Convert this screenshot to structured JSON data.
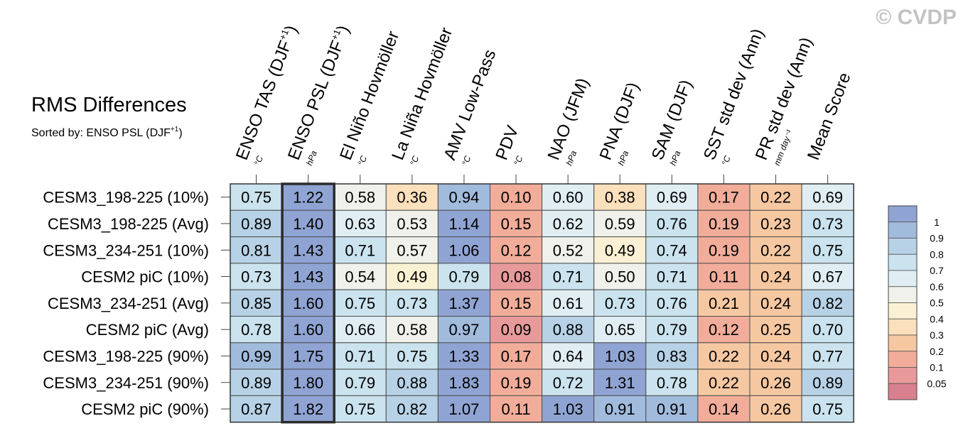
{
  "copyright": "© CVDP",
  "chart_data": {
    "type": "heatmap",
    "title": "RMS Differences",
    "subtitle_prefix": "Sorted by: ENSO PSL (DJF",
    "subtitle_sup": "+1",
    "subtitle_suffix": ")",
    "columns": [
      {
        "label": "ENSO TAS (DJF",
        "sup": "+1",
        "close": ")",
        "unit": "°C"
      },
      {
        "label": "ENSO PSL (DJF",
        "sup": "+1",
        "close": ")",
        "unit": "hPa"
      },
      {
        "label": "El Niño Hovmöller",
        "sup": "",
        "close": "",
        "unit": "°C"
      },
      {
        "label": "La Niña Hovmöller",
        "sup": "",
        "close": "",
        "unit": "°C"
      },
      {
        "label": "AMV Low-Pass",
        "sup": "",
        "close": "",
        "unit": "°C"
      },
      {
        "label": "PDV",
        "sup": "",
        "close": "",
        "unit": "°C"
      },
      {
        "label": "NAO (JFM)",
        "sup": "",
        "close": "",
        "unit": "hPa"
      },
      {
        "label": "PNA (DJF)",
        "sup": "",
        "close": "",
        "unit": "hPa"
      },
      {
        "label": "SAM (DJF)",
        "sup": "",
        "close": "",
        "unit": "hPa"
      },
      {
        "label": "SST std dev (Ann)",
        "sup": "",
        "close": "",
        "unit": "°C"
      },
      {
        "label": "PR std dev (Ann)",
        "sup": "",
        "close": "",
        "unit": "mm day⁻¹"
      },
      {
        "label": "Mean Score",
        "sup": "",
        "close": "",
        "unit": ""
      }
    ],
    "rows": [
      "CESM3_198-225 (10%)",
      "CESM3_198-225 (Avg)",
      "CESM3_234-251 (10%)",
      "CESM2 piC (10%)",
      "CESM3_234-251 (Avg)",
      "CESM2 piC (Avg)",
      "CESM3_198-225 (90%)",
      "CESM3_234-251 (90%)",
      "CESM2 piC (90%)"
    ],
    "values": [
      [
        "0.75",
        "1.22",
        "0.58",
        "0.36",
        "0.94",
        "0.10",
        "0.60",
        "0.38",
        "0.69",
        "0.17",
        "0.22",
        "0.69"
      ],
      [
        "0.89",
        "1.40",
        "0.63",
        "0.53",
        "1.14",
        "0.15",
        "0.62",
        "0.59",
        "0.76",
        "0.19",
        "0.23",
        "0.73"
      ],
      [
        "0.81",
        "1.43",
        "0.71",
        "0.57",
        "1.06",
        "0.12",
        "0.52",
        "0.49",
        "0.74",
        "0.19",
        "0.22",
        "0.75"
      ],
      [
        "0.73",
        "1.43",
        "0.54",
        "0.49",
        "0.79",
        "0.08",
        "0.71",
        "0.50",
        "0.71",
        "0.11",
        "0.24",
        "0.67"
      ],
      [
        "0.85",
        "1.60",
        "0.75",
        "0.73",
        "1.37",
        "0.15",
        "0.61",
        "0.73",
        "0.76",
        "0.21",
        "0.24",
        "0.82"
      ],
      [
        "0.78",
        "1.60",
        "0.66",
        "0.58",
        "0.97",
        "0.09",
        "0.88",
        "0.65",
        "0.79",
        "0.12",
        "0.25",
        "0.70"
      ],
      [
        "0.99",
        "1.75",
        "0.71",
        "0.75",
        "1.33",
        "0.17",
        "0.64",
        "1.03",
        "0.83",
        "0.22",
        "0.24",
        "0.77"
      ],
      [
        "0.89",
        "1.80",
        "0.79",
        "0.88",
        "1.83",
        "0.19",
        "0.72",
        "1.31",
        "0.78",
        "0.22",
        "0.26",
        "0.89"
      ],
      [
        "0.87",
        "1.82",
        "0.75",
        "0.82",
        "1.07",
        "0.11",
        "1.03",
        "0.91",
        "0.91",
        "0.14",
        "0.26",
        "0.75"
      ]
    ],
    "highlight_column": 1,
    "colorbar": {
      "labels": [
        "1",
        "0.9",
        "0.8",
        "0.7",
        "0.6",
        "0.5",
        "0.4",
        "0.3",
        "0.2",
        "0.1",
        "0.05"
      ],
      "bins": [
        {
          "min": 0.0,
          "max": 0.05,
          "color": "#d9808f"
        },
        {
          "min": 0.05,
          "max": 0.1,
          "color": "#e89a9a"
        },
        {
          "min": 0.1,
          "max": 0.2,
          "color": "#f1ad9a"
        },
        {
          "min": 0.2,
          "max": 0.3,
          "color": "#f6c8a2"
        },
        {
          "min": 0.3,
          "max": 0.4,
          "color": "#fae0bc"
        },
        {
          "min": 0.4,
          "max": 0.5,
          "color": "#faf1d4"
        },
        {
          "min": 0.5,
          "max": 0.6,
          "color": "#f0f1ea"
        },
        {
          "min": 0.6,
          "max": 0.7,
          "color": "#e0eef3"
        },
        {
          "min": 0.7,
          "max": 0.8,
          "color": "#cae3ee"
        },
        {
          "min": 0.8,
          "max": 0.9,
          "color": "#b7d2e6"
        },
        {
          "min": 0.9,
          "max": 1.0,
          "color": "#a1bbdc"
        },
        {
          "min": 1.0,
          "max": 99,
          "color": "#8fa4d3"
        }
      ]
    }
  }
}
